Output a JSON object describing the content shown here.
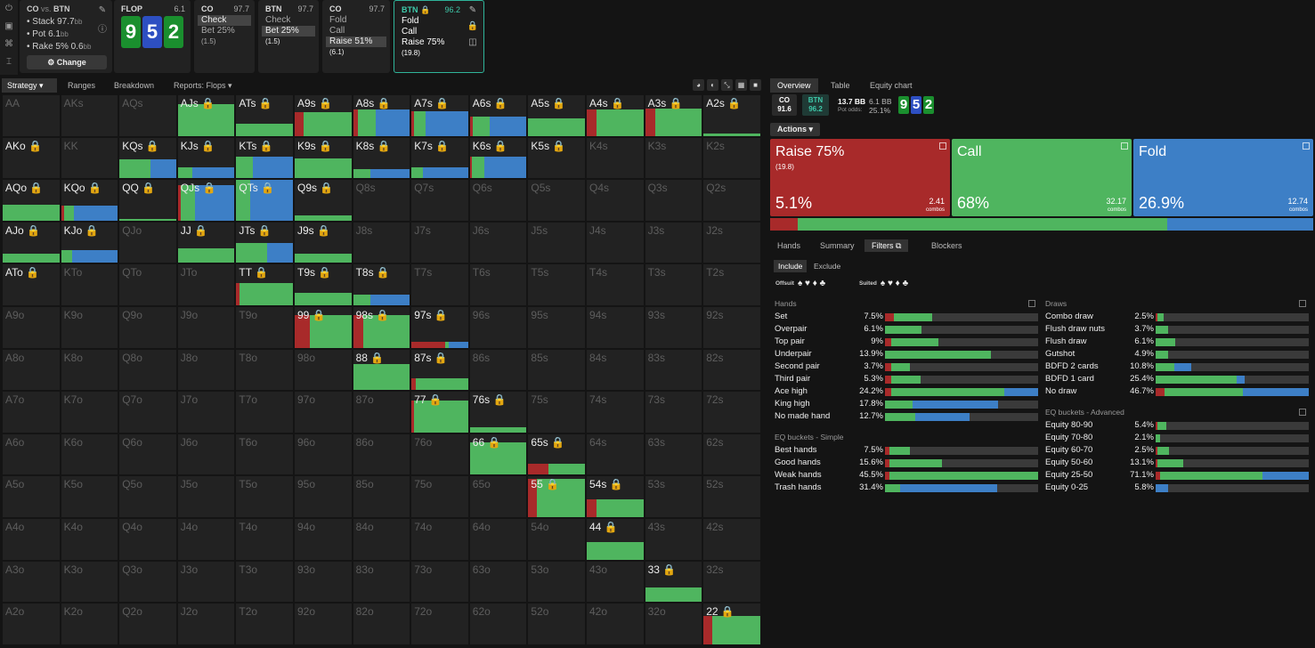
{
  "colors": {
    "raise": "#a82a2a",
    "call": "#4fb55f",
    "fold": "#3d7fc6",
    "teal": "#3ec9aa"
  },
  "top": {
    "icons": [
      "power-icon",
      "save-icon",
      "gamepad-icon",
      "text-cursor-icon"
    ],
    "info": {
      "co": "CO",
      "vs": "vs.",
      "btn": "BTN",
      "stack": "• Stack 97.7",
      "stack_u": "bb",
      "pot": "• Pot 6.1",
      "pot_u": "bb",
      "rake": "• Rake 5% 0.6",
      "rake_u": "bb",
      "change": "⚙ Change"
    },
    "flop": {
      "label": "FLOP",
      "value": "6.1",
      "cards": [
        "9",
        "5",
        "2"
      ]
    },
    "co1": {
      "label": "CO",
      "value": "97.7",
      "actions": [
        {
          "t": "Check",
          "p": ""
        },
        {
          "t": "Bet 25%",
          "p": "(1.5)"
        }
      ]
    },
    "btn1": {
      "label": "BTN",
      "value": "97.7",
      "actions": [
        {
          "t": "Check",
          "p": ""
        },
        {
          "t": "Bet 25%",
          "p": "(1.5)"
        }
      ]
    },
    "co2": {
      "label": "CO",
      "value": "97.7",
      "actions": [
        {
          "t": "Fold",
          "p": ""
        },
        {
          "t": "Call",
          "p": ""
        },
        {
          "t": "Raise 51%",
          "p": "(6.1)"
        }
      ]
    },
    "btn2": {
      "label": "BTN 🔒",
      "value": "96.2",
      "actions": [
        {
          "t": "Fold",
          "p": ""
        },
        {
          "t": "Call",
          "p": ""
        },
        {
          "t": "Raise 75%",
          "p": "(19.8)"
        }
      ]
    }
  },
  "main_tabs": [
    "Strategy ▾",
    "Ranges",
    "Breakdown",
    "Reports: Flops ▾"
  ],
  "grid_labels": [
    "AA",
    "AKs",
    "AQs",
    "AJs",
    "ATs",
    "A9s",
    "A8s",
    "A7s",
    "A6s",
    "A5s",
    "A4s",
    "A3s",
    "A2s",
    "AKo",
    "KK",
    "KQs",
    "KJs",
    "KTs",
    "K9s",
    "K8s",
    "K7s",
    "K6s",
    "K5s",
    "K4s",
    "K3s",
    "K2s",
    "AQo",
    "KQo",
    "QQ",
    "QJs",
    "QTs",
    "Q9s",
    "Q8s",
    "Q7s",
    "Q6s",
    "Q5s",
    "Q4s",
    "Q3s",
    "Q2s",
    "AJo",
    "KJo",
    "QJo",
    "JJ",
    "JTs",
    "J9s",
    "J8s",
    "J7s",
    "J6s",
    "J5s",
    "J4s",
    "J3s",
    "J2s",
    "ATo",
    "KTo",
    "QTo",
    "JTo",
    "TT",
    "T9s",
    "T8s",
    "T7s",
    "T6s",
    "T5s",
    "T4s",
    "T3s",
    "T2s",
    "A9o",
    "K9o",
    "Q9o",
    "J9o",
    "T9o",
    "99",
    "98s",
    "97s",
    "96s",
    "95s",
    "94s",
    "93s",
    "92s",
    "A8o",
    "K8o",
    "Q8o",
    "J8o",
    "T8o",
    "98o",
    "88",
    "87s",
    "86s",
    "85s",
    "84s",
    "83s",
    "82s",
    "A7o",
    "K7o",
    "Q7o",
    "J7o",
    "T7o",
    "97o",
    "87o",
    "77",
    "76s",
    "75s",
    "74s",
    "73s",
    "72s",
    "A6o",
    "K6o",
    "Q6o",
    "J6o",
    "T6o",
    "96o",
    "86o",
    "76o",
    "66",
    "65s",
    "64s",
    "63s",
    "62s",
    "A5o",
    "K5o",
    "Q5o",
    "J5o",
    "T5o",
    "95o",
    "85o",
    "75o",
    "65o",
    "55",
    "54s",
    "53s",
    "52s",
    "A4o",
    "K4o",
    "Q4o",
    "J4o",
    "T4o",
    "94o",
    "84o",
    "74o",
    "64o",
    "54o",
    "44",
    "43s",
    "42s",
    "A3o",
    "K3o",
    "Q3o",
    "J3o",
    "T3o",
    "93o",
    "83o",
    "73o",
    "63o",
    "53o",
    "43o",
    "33",
    "32s",
    "A2o",
    "K2o",
    "Q2o",
    "J2o",
    "T2o",
    "92o",
    "82o",
    "72o",
    "62o",
    "52o",
    "42o",
    "32o",
    "22"
  ],
  "right": {
    "tabs": [
      "Overview",
      "Table",
      "Equity chart"
    ],
    "co_badge": {
      "name": "CO",
      "value": "91.6"
    },
    "btn_badge": {
      "name": "BTN",
      "value": "96.2"
    },
    "pot": {
      "bb": "13.7 BB",
      "a": "6.1 BB",
      "odds_l": "Pot odds:",
      "odds": "25.1%"
    },
    "board": [
      "9",
      "5",
      "2"
    ],
    "actions_btn": "Actions ▾",
    "big": [
      {
        "title": "Raise 75%",
        "sub": "(19.8)",
        "pct": "5.1%",
        "combos": "2.41",
        "cl": "combos"
      },
      {
        "title": "Call",
        "sub": "",
        "pct": "68%",
        "combos": "32.17",
        "cl": "combos"
      },
      {
        "title": "Fold",
        "sub": "",
        "pct": "26.9%",
        "combos": "12.74",
        "cl": "combos"
      }
    ],
    "summary": {
      "raise": 0.051,
      "call": 0.68,
      "fold": 0.269
    },
    "sub_tabs": [
      "Hands",
      "Summary",
      "Filters ⧉",
      "Blockers"
    ],
    "include": [
      "Include",
      "Exclude"
    ],
    "offsuit": "Offsuit",
    "suited": "Suited",
    "suits": "♠ ♥ ♦ ♣",
    "hands_title": "Hands",
    "hands": [
      {
        "n": "Set",
        "v": "7.5%",
        "r": 0.06,
        "c": 0.25,
        "f": 0
      },
      {
        "n": "Overpair",
        "v": "6.1%",
        "r": 0,
        "c": 0.24,
        "f": 0
      },
      {
        "n": "Top pair",
        "v": "9%",
        "r": 0.04,
        "c": 0.31,
        "f": 0
      },
      {
        "n": "Underpair",
        "v": "13.9%",
        "r": 0,
        "c": 0.69,
        "f": 0
      },
      {
        "n": "Second pair",
        "v": "3.7%",
        "r": 0.04,
        "c": 0.12,
        "f": 0
      },
      {
        "n": "Third pair",
        "v": "5.3%",
        "r": 0.04,
        "c": 0.19,
        "f": 0
      },
      {
        "n": "Ace high",
        "v": "24.2%",
        "r": 0.04,
        "c": 0.74,
        "f": 0.22
      },
      {
        "n": "King high",
        "v": "17.8%",
        "r": 0,
        "c": 0.18,
        "f": 0.56
      },
      {
        "n": "No made hand",
        "v": "12.7%",
        "r": 0,
        "c": 0.2,
        "f": 0.35
      }
    ],
    "eq_simple_title": "EQ buckets - Simple",
    "eq_simple": [
      {
        "n": "Best hands",
        "v": "7.5%",
        "r": 0.03,
        "c": 0.13,
        "f": 0
      },
      {
        "n": "Good hands",
        "v": "15.6%",
        "r": 0.03,
        "c": 0.34,
        "f": 0
      },
      {
        "n": "Weak hands",
        "v": "45.5%",
        "r": 0.03,
        "c": 0.97,
        "f": 0
      },
      {
        "n": "Trash hands",
        "v": "31.4%",
        "r": 0,
        "c": 0.1,
        "f": 0.63
      }
    ],
    "draws_title": "Draws",
    "draws": [
      {
        "n": "Combo draw",
        "v": "2.5%",
        "r": 0.01,
        "c": 0.04,
        "f": 0
      },
      {
        "n": "Flush draw nuts",
        "v": "3.7%",
        "r": 0,
        "c": 0.08,
        "f": 0
      },
      {
        "n": "Flush draw",
        "v": "6.1%",
        "r": 0,
        "c": 0.13,
        "f": 0
      },
      {
        "n": "Gutshot",
        "v": "4.9%",
        "r": 0,
        "c": 0.08,
        "f": 0
      },
      {
        "n": "BDFD 2 cards",
        "v": "10.8%",
        "r": 0,
        "c": 0.12,
        "f": 0.11
      },
      {
        "n": "BDFD 1 card",
        "v": "25.4%",
        "r": 0,
        "c": 0.53,
        "f": 0.05
      },
      {
        "n": "No draw",
        "v": "46.7%",
        "r": 0.06,
        "c": 0.51,
        "f": 0.43
      }
    ],
    "eq_adv_title": "EQ buckets - Advanced",
    "eq_adv": [
      {
        "n": "Equity 80-90",
        "v": "5.4%",
        "r": 0.01,
        "c": 0.06,
        "f": 0
      },
      {
        "n": "Equity 70-80",
        "v": "2.1%",
        "r": 0,
        "c": 0.03,
        "f": 0
      },
      {
        "n": "Equity 60-70",
        "v": "2.5%",
        "r": 0.01,
        "c": 0.08,
        "f": 0
      },
      {
        "n": "Equity 50-60",
        "v": "13.1%",
        "r": 0.01,
        "c": 0.17,
        "f": 0
      },
      {
        "n": "Equity 25-50",
        "v": "71.1%",
        "r": 0.03,
        "c": 0.67,
        "f": 0.3
      },
      {
        "n": "Equity 0-25",
        "v": "5.8%",
        "r": 0,
        "c": 0,
        "f": 0.08
      }
    ]
  }
}
